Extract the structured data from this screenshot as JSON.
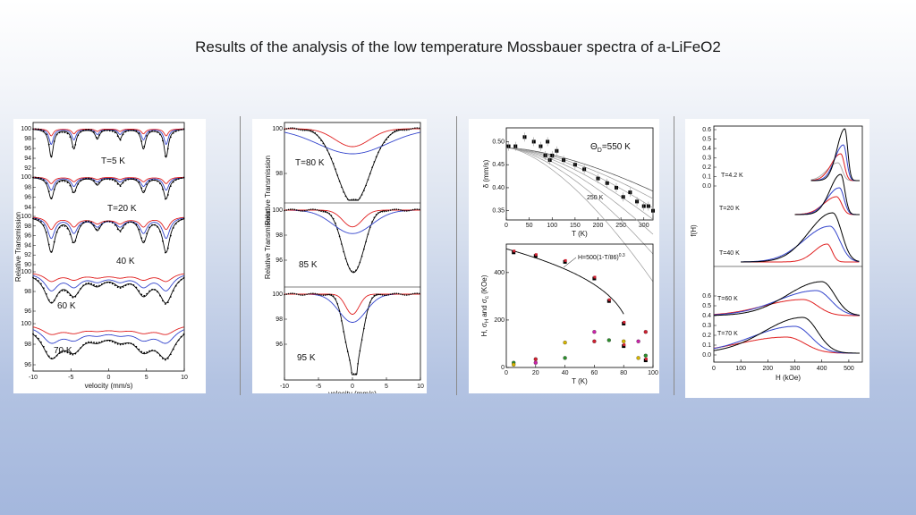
{
  "slide": {
    "title": "Results of the analysis of the low temperature Mossbauer spectra of  a-LiFeO2"
  },
  "chart_data": [
    {
      "type": "line",
      "panel": "A",
      "xlabel": "velocity (mm/s)",
      "ylabel": "Relative Transmission",
      "xlim": [
        -10,
        10
      ],
      "xticks": [
        "-10",
        "-5",
        "0",
        "5",
        "10"
      ],
      "stacks": [
        {
          "label": "T=5 K",
          "yticks": [
            "100",
            "98",
            "96",
            "94",
            "92"
          ]
        },
        {
          "label": "T=20 K",
          "yticks": [
            "100",
            "98",
            "96",
            "94"
          ]
        },
        {
          "label": "40 K",
          "yticks": [
            "100",
            "98",
            "96",
            "94",
            "92",
            "90"
          ]
        },
        {
          "label": "60 K",
          "yticks": [
            "100",
            "98",
            "96"
          ]
        },
        {
          "label": "70 K",
          "yticks": [
            "100",
            "98",
            "96"
          ]
        }
      ],
      "series_colors": [
        "#000000",
        "#3344cc",
        "#e02020"
      ]
    },
    {
      "type": "line",
      "panel": "B",
      "xlabel": "velocity (mm/s)",
      "ylabel": "Relative Transmission",
      "xlim": [
        -10,
        10
      ],
      "xticks": [
        "-10",
        "-5",
        "0",
        "5",
        "10"
      ],
      "stacks": [
        {
          "label": "T=80 K",
          "yticks": [
            "100",
            "98"
          ]
        },
        {
          "label": "85 K",
          "yticks": [
            "100",
            "98",
            "96"
          ]
        },
        {
          "label": "95 K",
          "yticks": [
            "100",
            "98",
            "96"
          ]
        }
      ]
    },
    {
      "type": "scatter",
      "panel": "C-top",
      "xlabel": "T (K)",
      "ylabel": "δ (mm/s)",
      "xlim": [
        0,
        320
      ],
      "ylim": [
        0.33,
        0.53
      ],
      "xticks": [
        "0",
        "50",
        "100",
        "150",
        "200",
        "250",
        "300"
      ],
      "yticks": [
        "0.35",
        "0.40",
        "0.45",
        "0.50"
      ],
      "annotations": [
        "Θ",
        "D",
        "=550 K",
        "250 K"
      ],
      "points": [
        [
          5,
          0.49
        ],
        [
          20,
          0.49
        ],
        [
          40,
          0.51
        ],
        [
          60,
          0.5
        ],
        [
          75,
          0.49
        ],
        [
          85,
          0.47
        ],
        [
          90,
          0.5
        ],
        [
          95,
          0.46
        ],
        [
          100,
          0.47
        ],
        [
          110,
          0.48
        ],
        [
          125,
          0.46
        ],
        [
          150,
          0.45
        ],
        [
          170,
          0.44
        ],
        [
          200,
          0.42
        ],
        [
          220,
          0.41
        ],
        [
          240,
          0.4
        ],
        [
          255,
          0.38
        ],
        [
          270,
          0.39
        ],
        [
          285,
          0.37
        ],
        [
          300,
          0.36
        ],
        [
          310,
          0.36
        ],
        [
          320,
          0.35
        ]
      ],
      "debye_curves": [
        550,
        500,
        450,
        400,
        350,
        300,
        250
      ]
    },
    {
      "type": "scatter",
      "panel": "C-bottom",
      "xlabel": "T (K)",
      "ylabel": "H, σ",
      "ylabel_sub": "H",
      "ylabel_mid": " and σ",
      "ylabel_sub2": "c",
      "ylabel_end": " (KOe)",
      "xlim": [
        0,
        100
      ],
      "ylim": [
        0,
        520
      ],
      "xticks": [
        "0",
        "20",
        "40",
        "60",
        "80",
        "100"
      ],
      "yticks": [
        "0",
        "200",
        "400"
      ],
      "fit_label": "H=500(1-T/86)",
      "fit_label_exp": "0.3",
      "H_points": [
        [
          5,
          485
        ],
        [
          20,
          470
        ],
        [
          40,
          445
        ],
        [
          60,
          375
        ],
        [
          70,
          280
        ],
        [
          80,
          185
        ],
        [
          80,
          90
        ],
        [
          95,
          30
        ]
      ],
      "sigma_points": [
        [
          5,
          20
        ],
        [
          5,
          12
        ],
        [
          20,
          20
        ],
        [
          20,
          35
        ],
        [
          40,
          40
        ],
        [
          40,
          105
        ],
        [
          60,
          150
        ],
        [
          60,
          110
        ],
        [
          70,
          115
        ],
        [
          80,
          110
        ],
        [
          90,
          110
        ],
        [
          95,
          150
        ],
        [
          95,
          50
        ],
        [
          90,
          40
        ]
      ]
    },
    {
      "type": "area",
      "panel": "D",
      "xlabel": "H (kOe)",
      "ylabel": "f(H)",
      "xlim": [
        0,
        550
      ],
      "xticks": [
        "0",
        "100",
        "200",
        "300",
        "400",
        "500"
      ],
      "yticks_top": [
        "0.6",
        "0.5",
        "0.4",
        "0.3",
        "0.2",
        "0.1",
        "0.0"
      ],
      "yticks_bottom": [
        "0.6",
        "0.5",
        "0.4",
        "0.3",
        "0.2",
        "0.1",
        "0.0"
      ],
      "labels": [
        "T=4.2 K",
        "T=20 K",
        "T=40 K",
        "T=60 K",
        "T=70 K"
      ]
    }
  ]
}
